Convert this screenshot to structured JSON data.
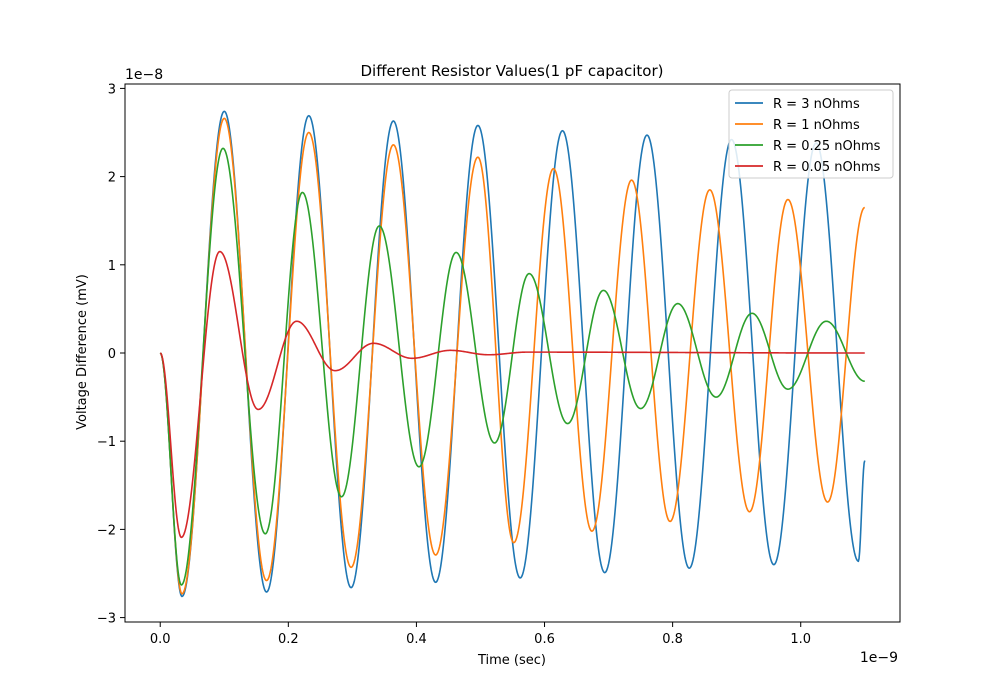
{
  "chart_data": {
    "type": "line",
    "title": "Different Resistor Values(1 pF capacitor)",
    "xlabel": "Time (sec)",
    "ylabel": "Voltage Difference (mV)",
    "x_offset_label": "1e−9",
    "y_offset_label": "1e−8",
    "xlim": [
      -0.055,
      1.155
    ],
    "ylim": [
      -3.05,
      3.05
    ],
    "x_ticks": [
      0.0,
      0.2,
      0.4,
      0.6,
      0.8,
      1.0
    ],
    "x_tick_labels": [
      "0.0",
      "0.2",
      "0.4",
      "0.6",
      "0.8",
      "1.0"
    ],
    "y_ticks": [
      -3,
      -2,
      -1,
      0,
      1,
      2,
      3
    ],
    "y_tick_labels": [
      "−3",
      "−2",
      "−1",
      "0",
      "1",
      "2",
      "3"
    ],
    "x_range": [
      0.0,
      1.1
    ],
    "grid": false,
    "legend_position": "top-right",
    "series": [
      {
        "name": "R = 3 nOhms",
        "color": "#1f77b4",
        "peak_times": [
          0.034,
          0.1,
          0.166,
          0.232,
          0.298,
          0.364,
          0.43,
          0.496,
          0.562,
          0.628,
          0.694,
          0.76,
          0.826,
          0.892,
          0.958,
          1.024,
          1.09
        ],
        "peak_values": [
          -2.76,
          2.74,
          -2.71,
          2.69,
          -2.66,
          2.63,
          -2.6,
          2.58,
          -2.55,
          2.52,
          -2.49,
          2.47,
          -2.44,
          2.42,
          -2.4,
          2.38,
          -2.36
        ],
        "end_value": -1.22
      },
      {
        "name": "R = 1 nOhms",
        "color": "#ff7f0e",
        "peak_times": [
          0.034,
          0.1,
          0.166,
          0.232,
          0.298,
          0.364,
          0.43,
          0.496,
          0.552,
          0.614,
          0.674,
          0.736,
          0.796,
          0.858,
          0.92,
          0.98,
          1.042
        ],
        "peak_values": [
          -2.73,
          2.66,
          -2.58,
          2.5,
          -2.43,
          2.36,
          -2.29,
          2.22,
          -2.15,
          2.09,
          -2.02,
          1.96,
          -1.91,
          1.85,
          -1.8,
          1.74,
          -1.69
        ],
        "end_value": 1.65
      },
      {
        "name": "R = 0.25 nOhms",
        "color": "#2ca02c",
        "peak_times": [
          0.033,
          0.098,
          0.164,
          0.222,
          0.283,
          0.342,
          0.404,
          0.462,
          0.522,
          0.576,
          0.636,
          0.692,
          0.75,
          0.808,
          0.868,
          0.924,
          0.98,
          1.04
        ],
        "peak_values": [
          -2.63,
          2.32,
          -2.05,
          1.82,
          -1.63,
          1.44,
          -1.29,
          1.14,
          -1.02,
          0.9,
          -0.8,
          0.71,
          -0.63,
          0.56,
          -0.5,
          0.45,
          -0.41,
          0.36
        ],
        "end_value": -0.32
      },
      {
        "name": "R = 0.05 nOhms",
        "color": "#d62728",
        "peak_times": [
          0.033,
          0.093,
          0.153,
          0.213,
          0.273,
          0.333,
          0.393,
          0.453,
          0.513,
          0.573
        ],
        "peak_values": [
          -2.09,
          1.15,
          -0.64,
          0.36,
          -0.2,
          0.11,
          -0.06,
          0.03,
          -0.02,
          0.01
        ],
        "end_value": 0.0
      }
    ]
  }
}
